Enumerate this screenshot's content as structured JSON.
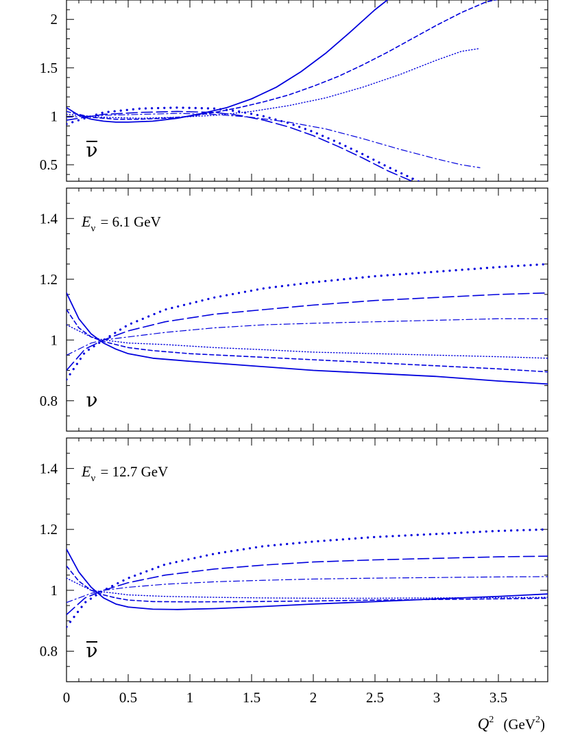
{
  "colors": {
    "curve": "#0000dd",
    "axes": "#000000",
    "background": "#ffffff"
  },
  "x_axis": {
    "label_symbol": "Q",
    "label_power": "2",
    "label_unit": "(GeV",
    "label_unit_power": "2",
    "label_unit_close": ")",
    "tick_labels": [
      "0",
      "0.5",
      "1",
      "1.5",
      "2",
      "2.5",
      "3",
      "3.5"
    ]
  },
  "panels": [
    {
      "id": "top",
      "particle": "ν",
      "antiparticle": true,
      "energy_label": null,
      "tick_labels": [
        "0.5",
        "1",
        "1.5",
        "2"
      ]
    },
    {
      "id": "middle",
      "particle": "ν",
      "antiparticle": false,
      "energy_symbol": "E",
      "energy_subscript": "ν",
      "energy_value": "= 6.1 GeV",
      "tick_labels": [
        "0.8",
        "1",
        "1.2",
        "1.4"
      ]
    },
    {
      "id": "bottom",
      "particle": "ν",
      "antiparticle": true,
      "energy_symbol": "E",
      "energy_subscript": "ν",
      "energy_value": "= 12.7 GeV",
      "tick_labels": [
        "0.8",
        "1",
        "1.2",
        "1.4"
      ]
    }
  ],
  "chart_data": [
    {
      "type": "line",
      "panel": "top",
      "xlim": [
        0,
        3.9
      ],
      "ylim": [
        0.33,
        2.2
      ],
      "y_ticks": [
        0.5,
        1,
        1.5,
        2
      ],
      "series": [
        {
          "style": "solid",
          "x": [
            0,
            0.1,
            0.2,
            0.3,
            0.4,
            0.5,
            0.7,
            0.9,
            1.1,
            1.3,
            1.5,
            1.7,
            1.9,
            2.1,
            2.3,
            2.5,
            2.6
          ],
          "y": [
            1.09,
            1.01,
            0.97,
            0.95,
            0.94,
            0.94,
            0.95,
            0.98,
            1.03,
            1.09,
            1.18,
            1.3,
            1.46,
            1.65,
            1.87,
            2.1,
            2.2
          ]
        },
        {
          "style": "dashed",
          "x": [
            0,
            0.2,
            0.4,
            0.6,
            0.8,
            1.0,
            1.2,
            1.4,
            1.6,
            1.8,
            2.0,
            2.2,
            2.4,
            2.6,
            2.8,
            3.0,
            3.2,
            3.4,
            3.55
          ],
          "y": [
            1.05,
            0.99,
            0.97,
            0.97,
            0.98,
            1.0,
            1.04,
            1.09,
            1.15,
            1.22,
            1.31,
            1.41,
            1.53,
            1.66,
            1.8,
            1.94,
            2.07,
            2.18,
            2.22
          ]
        },
        {
          "style": "dotted",
          "x": [
            0,
            0.3,
            0.6,
            0.9,
            1.2,
            1.5,
            1.8,
            2.1,
            2.4,
            2.7,
            3.0,
            3.2,
            3.35
          ],
          "y": [
            1.02,
            0.99,
            0.98,
            0.99,
            1.01,
            1.05,
            1.11,
            1.19,
            1.3,
            1.43,
            1.58,
            1.67,
            1.7
          ]
        },
        {
          "style": "dashdot",
          "x": [
            0,
            0.3,
            0.6,
            0.9,
            1.2,
            1.5,
            1.8,
            2.1,
            2.4,
            2.7,
            3.0,
            3.2,
            3.35
          ],
          "y": [
            0.99,
            1.01,
            1.02,
            1.03,
            1.02,
            0.99,
            0.94,
            0.87,
            0.77,
            0.66,
            0.56,
            0.5,
            0.47
          ]
        },
        {
          "style": "longdash",
          "x": [
            0,
            0.3,
            0.6,
            0.9,
            1.2,
            1.4,
            1.6,
            1.8,
            2.0,
            2.2,
            2.4,
            2.6,
            2.8,
            2.95
          ],
          "y": [
            0.96,
            1.02,
            1.04,
            1.05,
            1.04,
            1.01,
            0.96,
            0.89,
            0.8,
            0.69,
            0.57,
            0.44,
            0.33,
            0.28
          ]
        },
        {
          "style": "sparsedot",
          "x": [
            0,
            0.3,
            0.6,
            0.9,
            1.2,
            1.4,
            1.6,
            1.8,
            2.0,
            2.2,
            2.4,
            2.6,
            2.8,
            2.9
          ],
          "y": [
            0.92,
            1.04,
            1.08,
            1.09,
            1.08,
            1.05,
            1.0,
            0.93,
            0.84,
            0.73,
            0.61,
            0.48,
            0.36,
            0.3
          ]
        }
      ]
    },
    {
      "type": "line",
      "panel": "middle",
      "xlim": [
        0,
        3.9
      ],
      "ylim": [
        0.7,
        1.5
      ],
      "y_ticks": [
        0.8,
        1,
        1.2,
        1.4
      ],
      "series": [
        {
          "style": "solid",
          "x": [
            0,
            0.1,
            0.2,
            0.3,
            0.4,
            0.5,
            0.7,
            1.0,
            1.5,
            2.0,
            2.5,
            3.0,
            3.5,
            3.9
          ],
          "y": [
            1.155,
            1.07,
            1.02,
            0.99,
            0.97,
            0.955,
            0.94,
            0.93,
            0.915,
            0.9,
            0.89,
            0.88,
            0.865,
            0.855
          ]
        },
        {
          "style": "dashed",
          "x": [
            0,
            0.1,
            0.2,
            0.3,
            0.4,
            0.5,
            0.7,
            1.0,
            1.5,
            2.0,
            2.5,
            3.0,
            3.5,
            3.9
          ],
          "y": [
            1.1,
            1.04,
            1.01,
            0.995,
            0.985,
            0.975,
            0.965,
            0.955,
            0.945,
            0.935,
            0.925,
            0.915,
            0.905,
            0.895
          ]
        },
        {
          "style": "dotted",
          "x": [
            0,
            0.2,
            0.3,
            0.5,
            0.8,
            1.2,
            1.6,
            2.0,
            2.5,
            3.0,
            3.5,
            3.9
          ],
          "y": [
            1.05,
            1.01,
            1.0,
            0.99,
            0.985,
            0.975,
            0.968,
            0.96,
            0.955,
            0.95,
            0.945,
            0.94
          ]
        },
        {
          "style": "dashdot",
          "x": [
            0,
            0.2,
            0.3,
            0.5,
            0.8,
            1.2,
            1.6,
            2.0,
            2.5,
            3.0,
            3.5,
            3.9
          ],
          "y": [
            0.95,
            0.99,
            1.0,
            1.01,
            1.025,
            1.04,
            1.05,
            1.055,
            1.06,
            1.065,
            1.07,
            1.07
          ]
        },
        {
          "style": "longdash",
          "x": [
            0,
            0.15,
            0.3,
            0.5,
            0.8,
            1.2,
            1.6,
            2.0,
            2.5,
            3.0,
            3.5,
            3.9
          ],
          "y": [
            0.9,
            0.97,
            1.0,
            1.03,
            1.06,
            1.085,
            1.1,
            1.115,
            1.13,
            1.14,
            1.15,
            1.155
          ]
        },
        {
          "style": "sparsedot",
          "x": [
            0,
            0.15,
            0.3,
            0.5,
            0.8,
            1.2,
            1.6,
            2.0,
            2.5,
            3.0,
            3.5,
            3.9
          ],
          "y": [
            0.87,
            0.96,
            1.0,
            1.05,
            1.1,
            1.14,
            1.17,
            1.19,
            1.21,
            1.225,
            1.24,
            1.25
          ]
        }
      ]
    },
    {
      "type": "line",
      "panel": "bottom",
      "xlim": [
        0,
        3.9
      ],
      "ylim": [
        0.7,
        1.5
      ],
      "y_ticks": [
        0.8,
        1,
        1.2,
        1.4
      ],
      "series": [
        {
          "style": "solid",
          "x": [
            0,
            0.1,
            0.2,
            0.3,
            0.4,
            0.5,
            0.7,
            0.9,
            1.2,
            1.5,
            2.0,
            2.5,
            3.0,
            3.5,
            3.9
          ],
          "y": [
            1.135,
            1.06,
            1.01,
            0.975,
            0.955,
            0.945,
            0.938,
            0.937,
            0.94,
            0.945,
            0.955,
            0.963,
            0.972,
            0.98,
            0.988
          ]
        },
        {
          "style": "dashed",
          "x": [
            0,
            0.1,
            0.2,
            0.3,
            0.4,
            0.5,
            0.7,
            1.0,
            1.5,
            2.0,
            2.5,
            3.0,
            3.5,
            3.9
          ],
          "y": [
            1.08,
            1.03,
            1.0,
            0.985,
            0.975,
            0.968,
            0.963,
            0.962,
            0.963,
            0.965,
            0.968,
            0.97,
            0.972,
            0.974
          ]
        },
        {
          "style": "dotted",
          "x": [
            0,
            0.2,
            0.3,
            0.5,
            0.8,
            1.2,
            1.6,
            2.0,
            2.5,
            3.0,
            3.5,
            3.9
          ],
          "y": [
            1.04,
            1.0,
            0.995,
            0.985,
            0.98,
            0.977,
            0.975,
            0.974,
            0.974,
            0.975,
            0.976,
            0.977
          ]
        },
        {
          "style": "dashdot",
          "x": [
            0,
            0.2,
            0.3,
            0.5,
            0.8,
            1.2,
            1.6,
            2.0,
            2.5,
            3.0,
            3.5,
            3.9
          ],
          "y": [
            0.96,
            0.99,
            1.0,
            1.01,
            1.02,
            1.028,
            1.033,
            1.037,
            1.04,
            1.042,
            1.044,
            1.045
          ]
        },
        {
          "style": "longdash",
          "x": [
            0,
            0.15,
            0.3,
            0.5,
            0.8,
            1.2,
            1.6,
            2.0,
            2.5,
            3.0,
            3.5,
            3.9
          ],
          "y": [
            0.92,
            0.975,
            1.0,
            1.025,
            1.05,
            1.07,
            1.083,
            1.093,
            1.1,
            1.105,
            1.11,
            1.112
          ]
        },
        {
          "style": "sparsedot",
          "x": [
            0,
            0.15,
            0.3,
            0.5,
            0.8,
            1.2,
            1.6,
            2.0,
            2.5,
            3.0,
            3.5,
            3.9
          ],
          "y": [
            0.88,
            0.96,
            1.0,
            1.04,
            1.085,
            1.12,
            1.145,
            1.16,
            1.175,
            1.185,
            1.195,
            1.2
          ]
        }
      ]
    }
  ]
}
